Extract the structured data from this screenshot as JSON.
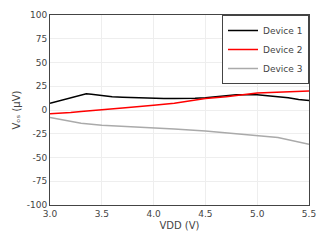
{
  "chart_data": {
    "type": "line",
    "xlabel": "VDD (V)",
    "ylabel": "Vₒₛ (µV)",
    "xlim": [
      3,
      5.5
    ],
    "ylim": [
      -100,
      100
    ],
    "xticks": [
      {
        "value": 3,
        "label": "3.0"
      },
      3.5,
      {
        "value": 4,
        "label": "4.0"
      },
      4.5,
      {
        "value": 5,
        "label": "5.0"
      },
      5.5
    ],
    "yticks": [
      -100,
      -75,
      -50,
      -25,
      0,
      25,
      50,
      75,
      100
    ],
    "grid": true,
    "legend": "upper right",
    "series": [
      {
        "name": "Device 1",
        "color": "#000000",
        "x": [
          3.0,
          3.1,
          3.2,
          3.3,
          3.35,
          3.4,
          3.5,
          3.6,
          3.7,
          3.8,
          3.9,
          4.0,
          4.1,
          4.2,
          4.3,
          4.4,
          4.5,
          4.6,
          4.7,
          4.8,
          4.9,
          5.0,
          5.1,
          5.2,
          5.3,
          5.4,
          5.5
        ],
        "values": [
          7,
          10,
          13,
          16,
          17,
          16.5,
          15,
          14,
          13.5,
          13,
          12.5,
          12,
          12,
          12,
          12,
          12.5,
          13,
          14,
          15,
          16,
          16,
          16,
          15,
          14,
          13,
          11,
          10
        ]
      },
      {
        "name": "Device 2",
        "color": "#ff0000",
        "x": [
          3.0,
          3.1,
          3.2,
          3.3,
          3.5,
          3.7,
          4.0,
          4.2,
          4.5,
          4.7,
          5.0,
          5.2,
          5.5
        ],
        "values": [
          -4,
          -3.5,
          -2.5,
          -1.5,
          0,
          2,
          5,
          7,
          12,
          14,
          18,
          19,
          20
        ]
      },
      {
        "name": "Device 3",
        "color": "#aaaaaa",
        "x": [
          3.0,
          3.1,
          3.2,
          3.3,
          3.5,
          3.7,
          4.0,
          4.2,
          4.5,
          4.7,
          5.0,
          5.2,
          5.5
        ],
        "values": [
          -8,
          -10,
          -12,
          -14,
          -16,
          -17,
          -19,
          -20,
          -22,
          -24,
          -27,
          -29,
          -36
        ]
      }
    ]
  }
}
